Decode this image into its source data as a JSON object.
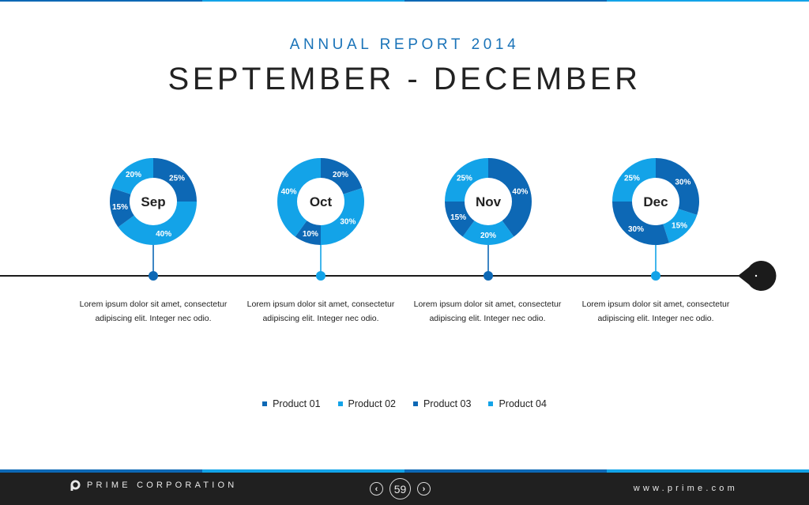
{
  "colors": {
    "dark": "#0d68b5",
    "light": "#13a3e8",
    "timeline": "#1b1b1b",
    "footer": "#202020"
  },
  "header": {
    "subtitle": "ANNUAL REPORT 2014",
    "title": "SEPTEMBER - DECEMBER"
  },
  "chart_data": {
    "type": "pie",
    "variant": "donut",
    "series_names": [
      "Product 01",
      "Product 02",
      "Product 03",
      "Product 04"
    ],
    "charts": [
      {
        "label": "Sep",
        "values": [
          25,
          40,
          15,
          20
        ],
        "labels": [
          "25%",
          "40%",
          "15%",
          "20%"
        ],
        "description": "Lorem ipsum dolor sit amet, consectetur adipiscing elit. Integer nec odio."
      },
      {
        "label": "Oct",
        "values": [
          20,
          30,
          10,
          40
        ],
        "labels": [
          "20%",
          "30%",
          "10%",
          "40%"
        ],
        "description": "Lorem ipsum dolor sit amet, consectetur adipiscing elit. Integer nec odio."
      },
      {
        "label": "Nov",
        "values": [
          40,
          20,
          15,
          25
        ],
        "labels": [
          "40%",
          "20%",
          "15%",
          "25%"
        ],
        "description": "Lorem ipsum dolor sit amet, consectetur adipiscing elit. Integer nec odio."
      },
      {
        "label": "Dec",
        "values": [
          30,
          15,
          30,
          25
        ],
        "labels": [
          "30%",
          "15%",
          "30%",
          "25%"
        ],
        "description": "Lorem ipsum dolor sit amet, consectetur adipiscing elit. Integer nec odio."
      }
    ],
    "legend_position": "bottom"
  },
  "descriptions": [
    {
      "line1": "Lorem ipsum dolor sit amet, consectetur",
      "line2": "adipiscing elit. Integer nec odio."
    },
    {
      "line1": "Lorem ipsum dolor sit amet, consectetur",
      "line2": "adipiscing elit. Integer nec odio."
    },
    {
      "line1": "Lorem ipsum dolor sit amet, consectetur",
      "line2": "adipiscing elit. Integer nec odio."
    },
    {
      "line1": "Lorem ipsum dolor sit amet, consectetur",
      "line2": "adipiscing elit. Integer nec odio."
    }
  ],
  "legend": [
    {
      "label": "Product 01",
      "color": "#0d68b5"
    },
    {
      "label": "Product 02",
      "color": "#13a3e8"
    },
    {
      "label": "Product 03",
      "color": "#0d68b5"
    },
    {
      "label": "Product 04",
      "color": "#13a3e8"
    }
  ],
  "footer": {
    "company": "PRIME CORPORATION",
    "logo_icon": "prime-logo-icon",
    "page_number": "59",
    "prev_icon": "‹",
    "next_icon": "›",
    "website": "www.prime.com"
  }
}
